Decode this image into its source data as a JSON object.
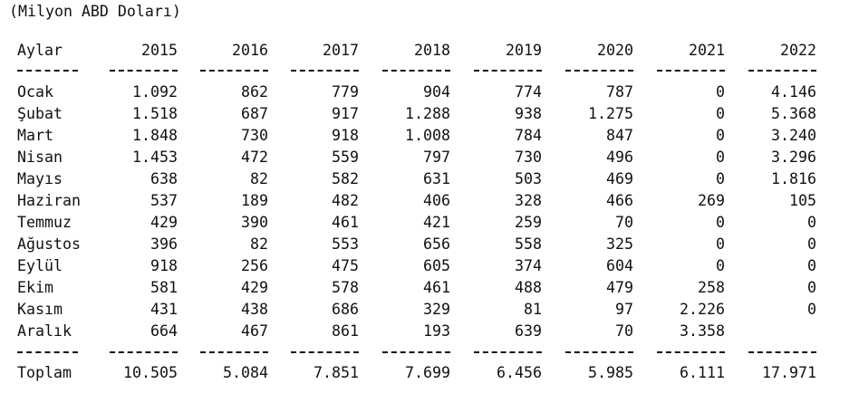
{
  "unit_label": "(Milyon ABD Doları)",
  "headers": [
    "Aylar",
    "2015",
    "2016",
    "2017",
    "2018",
    "2019",
    "2020",
    "2021",
    "2022"
  ],
  "rows": [
    [
      "Ocak",
      "1.092",
      "862",
      "779",
      "904",
      "774",
      "787",
      "0",
      "4.146"
    ],
    [
      "Şubat",
      "1.518",
      "687",
      "917",
      "1.288",
      "938",
      "1.275",
      "0",
      "5.368"
    ],
    [
      "Mart",
      "1.848",
      "730",
      "918",
      "1.008",
      "784",
      "847",
      "0",
      "3.240"
    ],
    [
      "Nisan",
      "1.453",
      "472",
      "559",
      "797",
      "730",
      "496",
      "0",
      "3.296"
    ],
    [
      "Mayıs",
      "638",
      "82",
      "582",
      "631",
      "503",
      "469",
      "0",
      "1.816"
    ],
    [
      "Haziran",
      "537",
      "189",
      "482",
      "406",
      "328",
      "466",
      "269",
      "105"
    ],
    [
      "Temmuz",
      "429",
      "390",
      "461",
      "421",
      "259",
      "70",
      "0",
      "0"
    ],
    [
      "Ağustos",
      "396",
      "82",
      "553",
      "656",
      "558",
      "325",
      "0",
      "0"
    ],
    [
      "Eylül",
      "918",
      "256",
      "475",
      "605",
      "374",
      "604",
      "0",
      "0"
    ],
    [
      "Ekim",
      "581",
      "429",
      "578",
      "461",
      "488",
      "479",
      "258",
      "0"
    ],
    [
      "Kasım",
      "431",
      "438",
      "686",
      "329",
      "81",
      "97",
      "2.226",
      "0"
    ],
    [
      "Aralık",
      "664",
      "467",
      "861",
      "193",
      "639",
      "70",
      "3.358",
      ""
    ]
  ],
  "total": [
    "Toplam",
    "10.505",
    "5.084",
    "7.851",
    "7.699",
    "6.456",
    "5.985",
    "6.111",
    "17.971"
  ]
}
